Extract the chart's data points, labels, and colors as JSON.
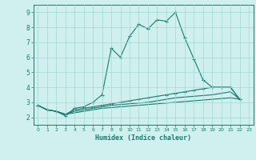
{
  "xlabel": "Humidex (Indice chaleur)",
  "x": [
    0,
    1,
    2,
    3,
    4,
    5,
    6,
    7,
    8,
    9,
    10,
    11,
    12,
    13,
    14,
    15,
    16,
    17,
    18,
    19,
    20,
    21,
    22,
    23
  ],
  "line1": [
    2.8,
    2.5,
    2.4,
    2.1,
    2.6,
    2.7,
    3.0,
    3.5,
    6.6,
    6.0,
    7.4,
    8.2,
    7.9,
    8.5,
    8.4,
    9.0,
    7.3,
    5.9,
    4.5,
    4.0,
    4.0,
    4.0,
    3.2,
    null
  ],
  "line2": [
    2.8,
    2.5,
    2.4,
    2.2,
    2.5,
    2.6,
    2.7,
    2.8,
    2.9,
    3.0,
    3.1,
    3.2,
    3.3,
    3.4,
    3.5,
    3.6,
    3.7,
    3.8,
    3.9,
    4.0,
    4.0,
    4.0,
    3.2,
    null
  ],
  "line3": [
    2.8,
    2.5,
    2.4,
    2.2,
    2.4,
    2.5,
    2.6,
    2.7,
    2.8,
    2.85,
    2.9,
    2.95,
    3.0,
    3.1,
    3.2,
    3.3,
    3.35,
    3.4,
    3.45,
    3.5,
    3.6,
    3.7,
    3.2,
    null
  ],
  "line4": [
    2.8,
    2.5,
    2.4,
    2.2,
    2.3,
    2.4,
    2.5,
    2.6,
    2.65,
    2.7,
    2.75,
    2.8,
    2.85,
    2.9,
    2.95,
    3.0,
    3.05,
    3.1,
    3.15,
    3.2,
    3.25,
    3.3,
    3.2,
    null
  ],
  "line_color": "#1a7a6e",
  "bg_color": "#cff0ee",
  "grid_color": "#a0d8d4",
  "ylim": [
    1.5,
    9.5
  ],
  "xlim": [
    -0.5,
    23.5
  ],
  "yticks": [
    2,
    3,
    4,
    5,
    6,
    7,
    8,
    9
  ],
  "xticks": [
    0,
    1,
    2,
    3,
    4,
    5,
    6,
    7,
    8,
    9,
    10,
    11,
    12,
    13,
    14,
    15,
    16,
    17,
    18,
    19,
    20,
    21,
    22,
    23
  ]
}
